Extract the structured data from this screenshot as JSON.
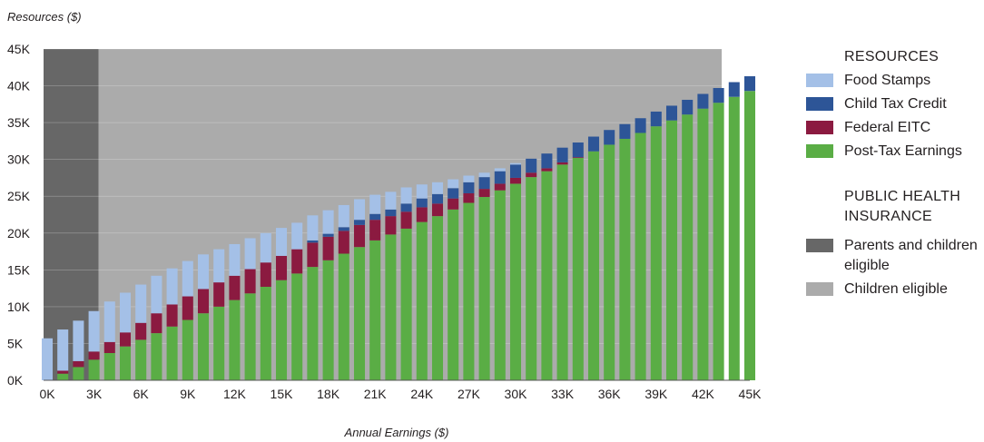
{
  "chart_data": {
    "type": "stacked-bar",
    "ylabel": "Resources ($)",
    "xlabel": "Annual Earnings ($)",
    "ylim": [
      0,
      45000
    ],
    "xlim": [
      0,
      45000
    ],
    "y_ticks": [
      "0K",
      "5K",
      "10K",
      "15K",
      "20K",
      "25K",
      "30K",
      "35K",
      "40K",
      "45K"
    ],
    "x_ticks": [
      "0K",
      "3K",
      "6K",
      "9K",
      "12K",
      "15K",
      "18K",
      "21K",
      "24K",
      "27K",
      "30K",
      "33K",
      "36K",
      "39K",
      "42K",
      "45K"
    ],
    "x_tick_values": [
      0,
      3000,
      6000,
      9000,
      12000,
      15000,
      18000,
      21000,
      24000,
      27000,
      30000,
      33000,
      36000,
      39000,
      42000,
      45000
    ],
    "bar_width": 700,
    "x": [
      0,
      1000,
      2000,
      3000,
      4000,
      5000,
      6000,
      7000,
      8000,
      9000,
      10000,
      11000,
      12000,
      13000,
      14000,
      15000,
      16000,
      17000,
      18000,
      19000,
      20000,
      21000,
      22000,
      23000,
      24000,
      25000,
      26000,
      27000,
      28000,
      29000,
      30000,
      31000,
      32000,
      33000,
      34000,
      35000,
      36000,
      37000,
      38000,
      39000,
      40000,
      41000,
      42000,
      43000,
      44000,
      45000
    ],
    "series": [
      {
        "name": "Post-Tax Earnings",
        "color": "#5aad45",
        "values": [
          0,
          900,
          1800,
          2800,
          3700,
          4600,
          5500,
          6400,
          7300,
          8200,
          9100,
          10000,
          10900,
          11800,
          12700,
          13600,
          14500,
          15400,
          16300,
          17200,
          18100,
          19000,
          19800,
          20600,
          21500,
          22300,
          23200,
          24100,
          24900,
          25800,
          26700,
          27600,
          28400,
          29300,
          30200,
          31100,
          32000,
          32800,
          33600,
          34500,
          35300,
          36100,
          36900,
          37700,
          38500,
          39300
        ]
      },
      {
        "name": "Federal EITC",
        "color": "#8b1a40",
        "values": [
          0,
          400,
          800,
          1100,
          1500,
          1900,
          2300,
          2700,
          3000,
          3200,
          3300,
          3300,
          3300,
          3300,
          3300,
          3300,
          3300,
          3300,
          3200,
          3100,
          3000,
          2800,
          2500,
          2300,
          2000,
          1700,
          1500,
          1300,
          1100,
          900,
          800,
          600,
          400,
          300,
          100,
          0,
          0,
          0,
          0,
          0,
          0,
          0,
          0,
          0,
          0,
          0
        ]
      },
      {
        "name": "Child Tax Credit",
        "color": "#2d5597",
        "values": [
          0,
          0,
          0,
          0,
          0,
          0,
          0,
          0,
          0,
          0,
          0,
          0,
          0,
          0,
          0,
          0,
          0,
          300,
          400,
          500,
          700,
          800,
          900,
          1100,
          1200,
          1300,
          1400,
          1500,
          1600,
          1700,
          1800,
          1900,
          2000,
          2000,
          2000,
          2000,
          2000,
          2000,
          2000,
          2000,
          2000,
          2000,
          2000,
          2000,
          2000,
          2000
        ]
      },
      {
        "name": "Food Stamps",
        "color": "#a4c0e7",
        "values": [
          5700,
          5600,
          5500,
          5500,
          5500,
          5400,
          5200,
          5100,
          4900,
          4800,
          4700,
          4500,
          4300,
          4200,
          4000,
          3800,
          3600,
          3400,
          3200,
          3000,
          2800,
          2600,
          2400,
          2200,
          1900,
          1600,
          1200,
          900,
          600,
          400,
          200,
          0,
          0,
          0,
          0,
          0,
          0,
          0,
          0,
          0,
          0,
          0,
          0,
          0,
          0,
          0
        ]
      }
    ],
    "coverage_bands": [
      {
        "name": "Parents and children eligible",
        "color": "#676767",
        "range": [
          -300,
          3300
        ]
      },
      {
        "name": "Children eligible",
        "color": "#ababab",
        "range": [
          3300,
          43200
        ]
      }
    ],
    "grid": true,
    "legend_position": "right"
  },
  "legend": {
    "resources_heading": "RESOURCES",
    "resources": [
      {
        "label": "Food Stamps",
        "color": "#a4c0e7"
      },
      {
        "label": "Child Tax Credit",
        "color": "#2d5597"
      },
      {
        "label": "Federal EITC",
        "color": "#8b1a40"
      },
      {
        "label": "Post-Tax Earnings",
        "color": "#5aad45"
      }
    ],
    "insurance_heading_line1": "PUBLIC HEALTH",
    "insurance_heading_line2": "INSURANCE",
    "insurance": [
      {
        "label": "Parents and children eligible",
        "color": "#676767"
      },
      {
        "label": "Children eligible",
        "color": "#ababab"
      }
    ]
  }
}
